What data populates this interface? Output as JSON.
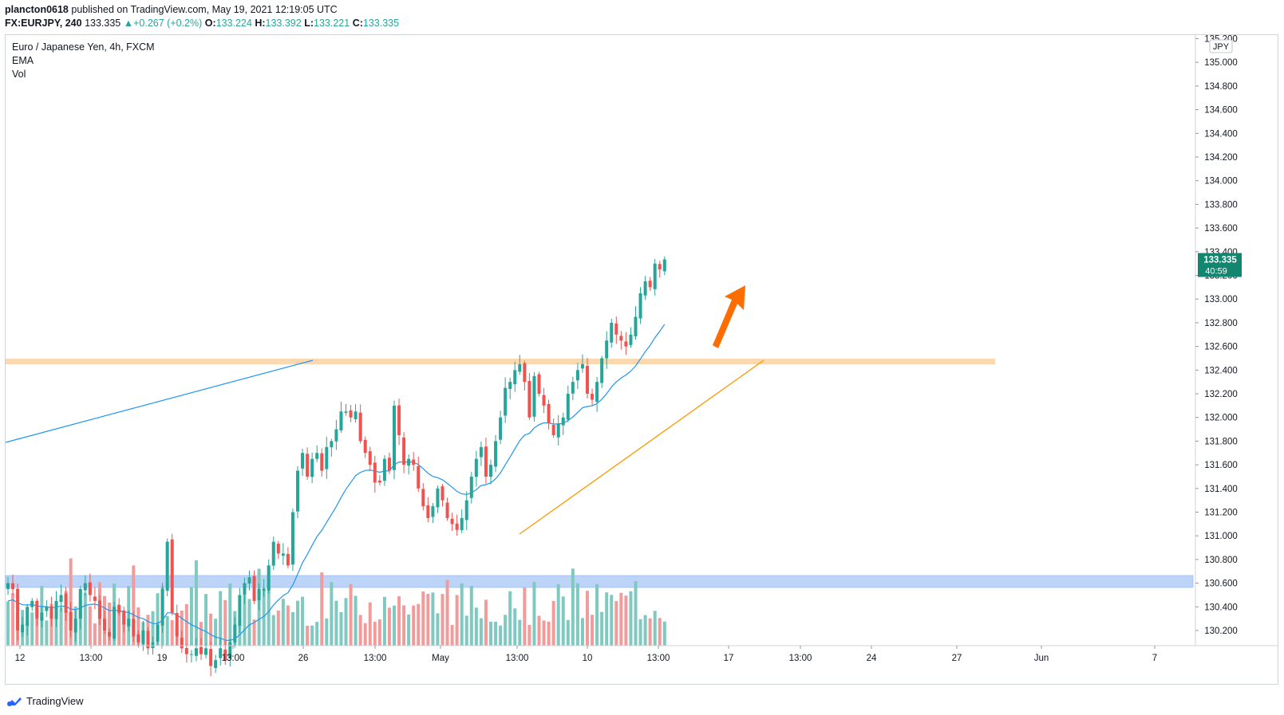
{
  "header": {
    "author": "plancton0618",
    "published_text": "published on TradingView.com, May 19, 2021 12:19:05 UTC",
    "symbol": "FX:EURJPY, 240",
    "last": "133.335",
    "change": "+0.267 (+0.2%)",
    "o_label": "O:",
    "o": "133.224",
    "h_label": "H:",
    "h": "133.392",
    "l_label": "L:",
    "l": "133.221",
    "c_label": "C:",
    "c": "133.335"
  },
  "legend": {
    "title": "Euro / Japanese Yen, 4h, FXCM",
    "ema": "EMA",
    "vol": "Vol"
  },
  "price_label": {
    "value": "133.335",
    "countdown": "40:59"
  },
  "currency_badge": "JPY",
  "brand": "TradingView",
  "colors": {
    "up": "#26a69a",
    "down": "#ef5350",
    "up_volume": "#7fc9c1",
    "down_volume": "#f19c9b",
    "ema": "#2196f3",
    "support_zone": "#fbd8b0",
    "blue_zone": "#bcd4f7",
    "trendline": "#ff9800",
    "arrow": "#ff6d00",
    "blue_line": "#2196f3"
  },
  "chart_data": {
    "type": "candlestick",
    "y_axis_ticks": [
      "130.200",
      "130.400",
      "130.600",
      "130.800",
      "131.000",
      "131.200",
      "131.400",
      "131.600",
      "131.800",
      "132.000",
      "132.200",
      "132.400",
      "132.600",
      "132.800",
      "133.000",
      "133.200",
      "133.400",
      "133.600",
      "133.800",
      "134.000",
      "134.200",
      "134.400",
      "134.600",
      "134.800",
      "135.000",
      "135.200"
    ],
    "ylim": [
      130.05,
      135.25
    ],
    "x_axis_ticks": [
      "12",
      "13:00",
      "19",
      "13:00",
      "26",
      "13:00",
      "May",
      "13:00",
      "10",
      "13:00",
      "17",
      "13:00",
      "24",
      "27",
      "Jun",
      "7"
    ],
    "close_series_approx": [
      130.6,
      130.55,
      130.2,
      130.25,
      130.4,
      130.45,
      130.3,
      130.35,
      130.4,
      130.3,
      130.45,
      130.5,
      130.35,
      130.2,
      130.3,
      130.55,
      130.6,
      130.5,
      130.45,
      130.3,
      130.2,
      130.15,
      130.4,
      130.35,
      130.25,
      130.3,
      130.15,
      130.1,
      130.2,
      130.05,
      130.1,
      130.25,
      130.55,
      130.95,
      130.35,
      130.15,
      130.05,
      130.0,
      130.0,
      130.05,
      130.0,
      130.05,
      129.9,
      129.95,
      130.05,
      129.95,
      130.1,
      130.25,
      130.5,
      130.6,
      130.65,
      130.45,
      130.55,
      130.55,
      130.75,
      130.95,
      130.85,
      130.85,
      130.75,
      131.2,
      131.55,
      131.7,
      131.5,
      131.65,
      131.7,
      131.55,
      131.75,
      131.8,
      131.9,
      132.05,
      132.05,
      132.0,
      132.05,
      131.8,
      131.7,
      131.6,
      131.45,
      131.45,
      131.65,
      131.55,
      132.1,
      131.85,
      131.6,
      131.65,
      131.6,
      131.4,
      131.25,
      131.15,
      131.25,
      131.4,
      131.3,
      131.15,
      131.1,
      131.05,
      131.15,
      131.3,
      131.5,
      131.65,
      131.75,
      131.5,
      131.6,
      131.8,
      132.0,
      132.25,
      132.3,
      132.4,
      132.45,
      132.3,
      132.0,
      132.35,
      132.2,
      132.1,
      131.95,
      131.85,
      131.95,
      132.0,
      132.2,
      132.3,
      132.4,
      132.45,
      132.2,
      132.15,
      132.3,
      132.5,
      132.65,
      132.8,
      132.7,
      132.65,
      132.6,
      132.7,
      132.85,
      133.05,
      133.15,
      133.1,
      133.3,
      133.25,
      133.335
    ]
  }
}
